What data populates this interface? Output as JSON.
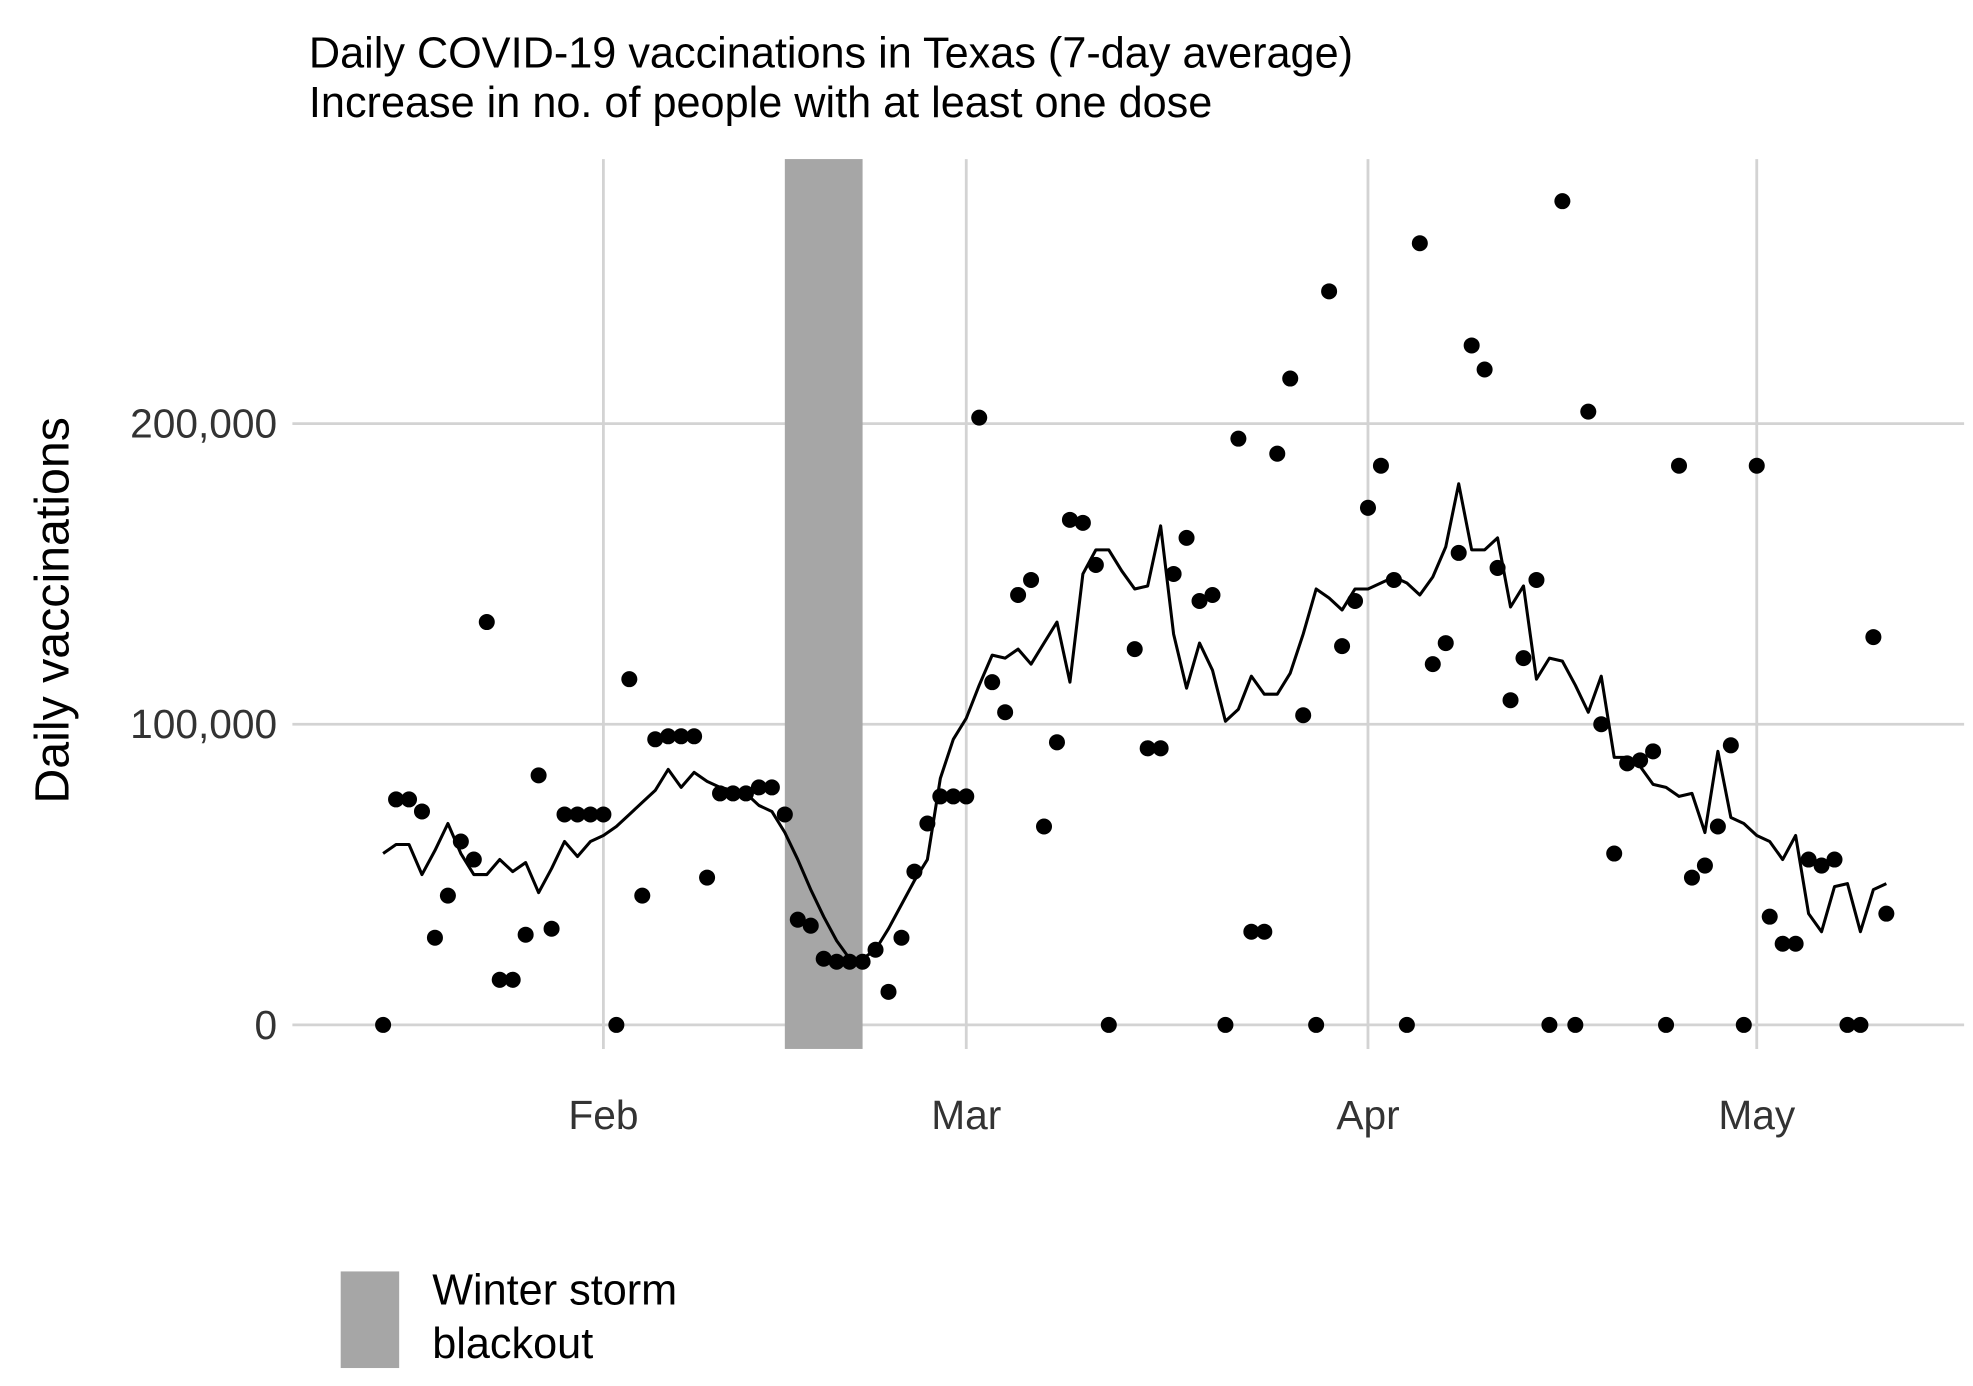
{
  "chart_data": {
    "type": "scatter",
    "title": "Daily COVID-19 vaccinations in Texas (7-day average)",
    "subtitle": "Increase in no. of people with at least one dose",
    "y_label": "Daily vaccinations",
    "x": [
      15,
      16,
      17,
      18,
      19,
      20,
      21,
      22,
      23,
      24,
      25,
      26,
      27,
      28,
      29,
      30,
      31,
      32,
      33,
      34,
      35,
      36,
      37,
      38,
      39,
      40,
      41,
      42,
      43,
      44,
      45,
      46,
      47,
      48,
      49,
      50,
      51,
      52,
      53,
      54,
      55,
      56,
      57,
      58,
      59,
      60,
      61,
      62,
      63,
      64,
      65,
      66,
      67,
      68,
      69,
      70,
      71,
      72,
      73,
      74,
      75,
      76,
      77,
      78,
      79,
      80,
      81,
      82,
      83,
      84,
      85,
      86,
      87,
      88,
      89,
      90,
      91,
      92,
      93,
      94,
      95,
      96,
      97,
      98,
      99,
      100,
      101,
      102,
      103,
      104,
      105,
      106,
      107,
      108,
      109,
      110,
      111,
      112,
      113,
      114,
      115,
      116,
      117,
      118,
      119,
      120,
      121,
      122,
      123,
      124,
      125,
      126,
      127,
      128,
      129,
      130,
      131
    ],
    "series": [
      {
        "mark": "point",
        "color": "#000000",
        "values": [
          0,
          75000,
          75000,
          71000,
          29000,
          43000,
          61000,
          55000,
          134000,
          15000,
          15000,
          30000,
          83000,
          32000,
          70000,
          70000,
          70000,
          70000,
          0,
          115000,
          43000,
          95000,
          96000,
          96000,
          96000,
          49000,
          77000,
          77000,
          77000,
          79000,
          79000,
          70000,
          35000,
          33000,
          22000,
          21000,
          21000,
          21000,
          25000,
          11000,
          29000,
          51000,
          67000,
          76000,
          76000,
          76000,
          202000,
          114000,
          104000,
          143000,
          148000,
          66000,
          94000,
          168000,
          167000,
          153000,
          0,
          null,
          125000,
          92000,
          92000,
          150000,
          162000,
          141000,
          143000,
          0,
          195000,
          31000,
          31000,
          190000,
          215000,
          103000,
          0,
          244000,
          126000,
          141000,
          172000,
          186000,
          148000,
          0,
          260000,
          120000,
          127000,
          157000,
          226000,
          218000,
          152000,
          108000,
          122000,
          148000,
          0,
          274000,
          0,
          204000,
          100000,
          57000,
          87000,
          88000,
          91000,
          0,
          186000,
          49000,
          53000,
          66000,
          93000,
          0,
          186000,
          36000,
          27000,
          27000,
          55000,
          53000,
          55000,
          0,
          0,
          129000,
          37000
        ]
      },
      {
        "mark": "line",
        "color": "#000000",
        "values": [
          57000,
          60000,
          60000,
          50000,
          58000,
          67000,
          57000,
          50000,
          50000,
          55000,
          51000,
          54000,
          44000,
          52000,
          61000,
          56000,
          61000,
          63000,
          66000,
          70000,
          74000,
          78000,
          85000,
          79000,
          84000,
          81000,
          79000,
          78000,
          77000,
          73000,
          71000,
          64000,
          55000,
          45000,
          36000,
          28000,
          22000,
          22000,
          25000,
          32000,
          40000,
          48000,
          55000,
          82000,
          95000,
          102000,
          113000,
          123000,
          122000,
          125000,
          120000,
          127000,
          134000,
          114000,
          150000,
          158000,
          158000,
          151000,
          145000,
          146000,
          166000,
          130000,
          112000,
          127000,
          118000,
          101000,
          105000,
          116000,
          110000,
          110000,
          117000,
          130000,
          145000,
          142000,
          138000,
          145000,
          145000,
          147000,
          149000,
          147000,
          143000,
          149000,
          159000,
          180000,
          158000,
          158000,
          162000,
          139000,
          146000,
          115000,
          122000,
          121000,
          113000,
          104000,
          116000,
          89000,
          89000,
          86000,
          80000,
          79000,
          76000,
          77000,
          64000,
          91000,
          69000,
          67000,
          63000,
          61000,
          55000,
          63000,
          37000,
          31000,
          46000,
          47000,
          31000,
          45000,
          47000
        ]
      }
    ],
    "blackout": {
      "label": "Winter storm blackout",
      "xlim": [
        46,
        52
      ],
      "color": "#a6a6a6"
    },
    "xlim": [
      8,
      137
    ],
    "xticks": [
      {
        "value": 32,
        "label": "Feb"
      },
      {
        "value": 60,
        "label": "Mar"
      },
      {
        "value": 91,
        "label": "Apr"
      },
      {
        "value": 121,
        "label": "May"
      }
    ],
    "ylim": [
      -8000,
      288000
    ],
    "yticks": [
      0,
      {
        "value": 100000,
        "label": "100,000"
      },
      {
        "value": 200000,
        "label": "200,000"
      }
    ],
    "grid": true
  }
}
